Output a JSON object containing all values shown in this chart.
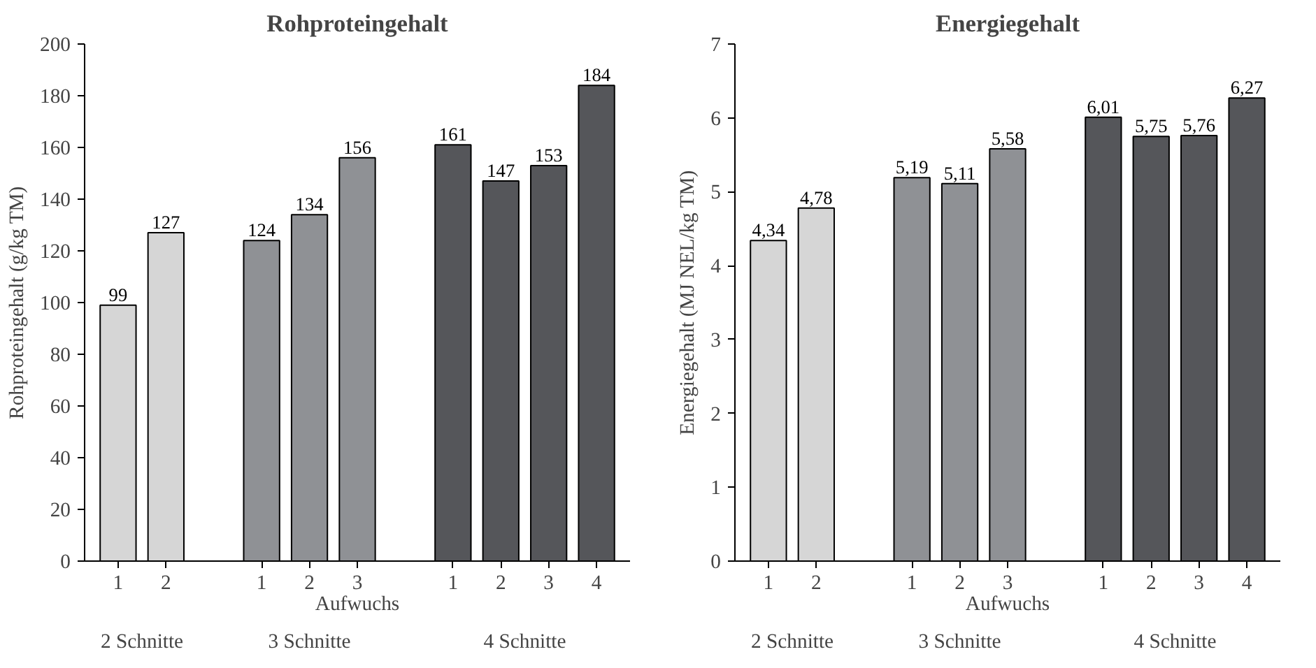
{
  "chart_data": [
    {
      "type": "bar",
      "title": "Rohproteingehalt",
      "ylabel": "Rohproteingehalt (g/kg TM)",
      "xlabel": "Aufwuchs",
      "categories": [
        "1",
        "2",
        null,
        "1",
        "2",
        "3",
        null,
        "1",
        "2",
        "3",
        "4"
      ],
      "values": [
        99,
        127,
        null,
        124,
        134,
        156,
        null,
        161,
        147,
        153,
        184
      ],
      "value_labels": [
        "99",
        "127",
        null,
        "124",
        "134",
        "156",
        null,
        "161",
        "147",
        "153",
        "184"
      ],
      "colors": [
        "#d6d6d6",
        "#d6d6d6",
        null,
        "#8f9195",
        "#8f9195",
        "#8f9195",
        null,
        "#55565a",
        "#55565a",
        "#55565a",
        "#55565a"
      ],
      "ylim": [
        0,
        200
      ],
      "yticks": [
        0,
        20,
        40,
        60,
        80,
        100,
        120,
        140,
        160,
        180,
        200
      ],
      "grid": false,
      "annotations": [
        "2 Schnitte",
        "3 Schnitte",
        "4 Schnitte"
      ]
    },
    {
      "type": "bar",
      "title": "Energiegehalt",
      "ylabel": "Energiegehalt (MJ NEL/kg TM)",
      "xlabel": "Aufwuchs",
      "categories": [
        "1",
        "2",
        null,
        "1",
        "2",
        "3",
        null,
        "1",
        "2",
        "3",
        "4"
      ],
      "values": [
        4.34,
        4.78,
        null,
        5.19,
        5.11,
        5.58,
        null,
        6.01,
        5.75,
        5.76,
        6.27
      ],
      "value_labels": [
        "4,34",
        "4,78",
        null,
        "5,19",
        "5,11",
        "5,58",
        null,
        "6,01",
        "5,75",
        "5,76",
        "6,27"
      ],
      "colors": [
        "#d6d6d6",
        "#d6d6d6",
        null,
        "#8f9195",
        "#8f9195",
        "#8f9195",
        null,
        "#55565a",
        "#55565a",
        "#55565a",
        "#55565a"
      ],
      "ylim": [
        0,
        7
      ],
      "yticks": [
        0,
        1,
        2,
        3,
        4,
        5,
        6,
        7
      ],
      "grid": false,
      "annotations": [
        "2 Schnitte",
        "3 Schnitte",
        "4 Schnitte"
      ]
    }
  ]
}
